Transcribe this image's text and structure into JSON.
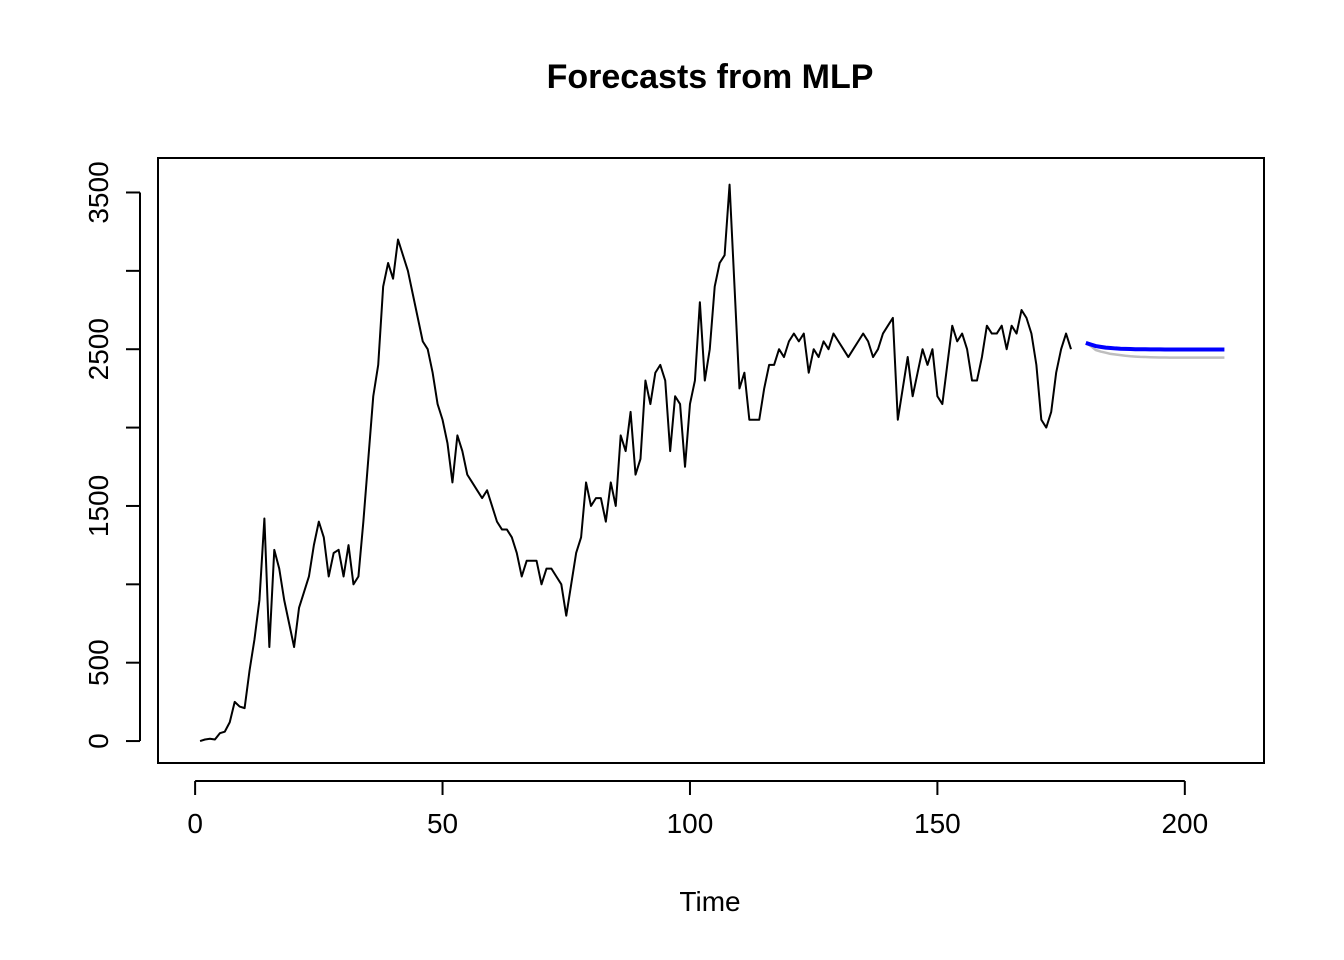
{
  "chart_data": {
    "type": "line",
    "title": "Forecasts from MLP",
    "xlabel": "Time",
    "ylabel": "",
    "xlim": [
      -7.5,
      216
    ],
    "ylim": [
      -140,
      3720
    ],
    "xticks": [
      0,
      50,
      100,
      150,
      200
    ],
    "yticks": [
      0,
      500,
      1500,
      2500,
      3500
    ],
    "y_minor_ticks": [
      1000,
      2000,
      3000
    ],
    "series": [
      {
        "color": "#000000",
        "x_start": 1,
        "values": [
          0,
          10,
          15,
          10,
          50,
          60,
          120,
          250,
          220,
          210,
          450,
          650,
          900,
          1420,
          600,
          1220,
          1100,
          900,
          750,
          600,
          850,
          950,
          1050,
          1250,
          1400,
          1300,
          1050,
          1200,
          1220,
          1050,
          1250,
          1000,
          1050,
          1400,
          1800,
          2200,
          2400,
          2900,
          3050,
          2950,
          3200,
          3100,
          3000,
          2850,
          2700,
          2550,
          2500,
          2350,
          2150,
          2050,
          1900,
          1650,
          1950,
          1850,
          1700,
          1650,
          1600,
          1550,
          1600,
          1500,
          1400,
          1350,
          1350,
          1300,
          1200,
          1050,
          1150,
          1150,
          1150,
          1000,
          1100,
          1100,
          1050,
          1000,
          800,
          1000,
          1200,
          1300,
          1650,
          1500,
          1550,
          1550,
          1400,
          1650,
          1500,
          1950,
          1850,
          2100,
          1700,
          1800,
          2300,
          2150,
          2350,
          2400,
          2300,
          1850,
          2200,
          2150,
          1750,
          2150,
          2300,
          2800,
          2300,
          2500,
          2900,
          3050,
          3100,
          3550,
          2900,
          2250,
          2350,
          2050,
          2050,
          2050,
          2250,
          2400,
          2400,
          2500,
          2450,
          2550,
          2600,
          2550,
          2600,
          2350,
          2500,
          2450,
          2550,
          2500,
          2600,
          2550,
          2500,
          2450,
          2500,
          2550,
          2600,
          2550,
          2450,
          2500,
          2600,
          2650,
          2700,
          2050,
          2250,
          2450,
          2200,
          2350,
          2500,
          2400,
          2500,
          2200,
          2150,
          2400,
          2650,
          2550,
          2600,
          2500,
          2300,
          2300,
          2450,
          2650,
          2600,
          2600,
          2650,
          2500,
          2650,
          2600,
          2750,
          2700,
          2600,
          2400,
          2050,
          2000,
          2100,
          2350,
          2500,
          2600,
          2500
        ]
      },
      {
        "color": "#0000FF",
        "x_start": 180,
        "values": [
          2540,
          2530,
          2520,
          2515,
          2510,
          2508,
          2505,
          2503,
          2502,
          2501,
          2500,
          2500,
          2500,
          2499,
          2499,
          2499,
          2498,
          2498,
          2498,
          2498,
          2498,
          2498,
          2498,
          2498,
          2498,
          2498,
          2498,
          2498,
          2498
        ]
      },
      {
        "color": "#BEBEBE",
        "x_start": 180,
        "values": [
          2540,
          2520,
          2495,
          2485,
          2478,
          2470,
          2466,
          2462,
          2458,
          2455,
          2453,
          2451,
          2450,
          2449,
          2448,
          2447,
          2447,
          2446,
          2446,
          2446,
          2446,
          2446,
          2446,
          2446,
          2446,
          2446,
          2446,
          2446,
          2446
        ]
      }
    ],
    "grid": false,
    "legend": "none"
  }
}
